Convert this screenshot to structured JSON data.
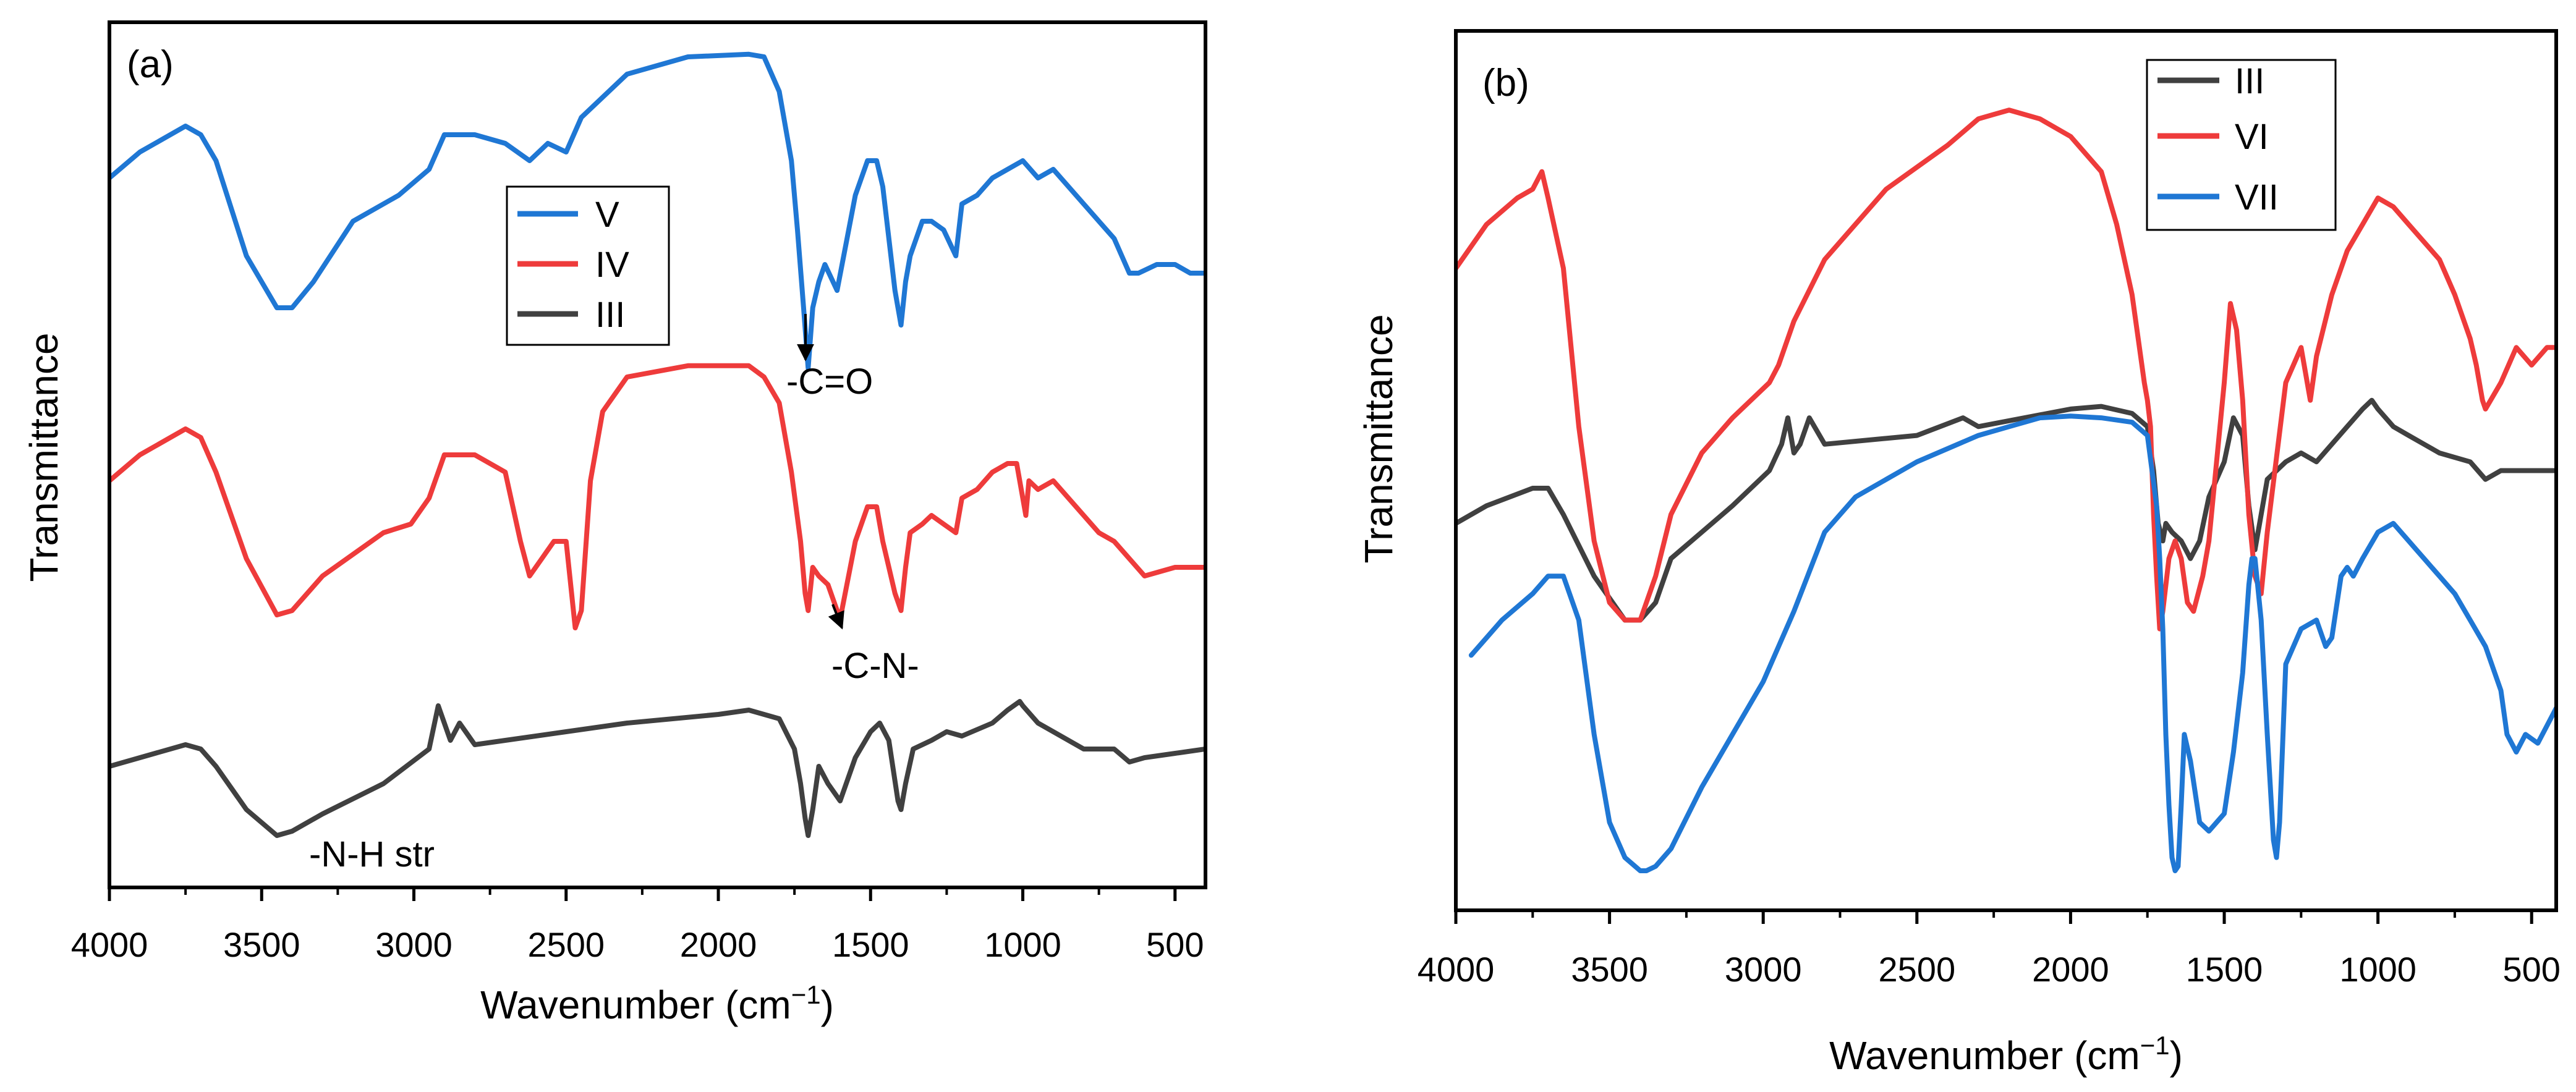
{
  "chart_data": [
    {
      "type": "line",
      "panel_label": "(a)",
      "xlabel": "Wavenumber (cm",
      "xlabel_sup": "−1",
      "xlabel_tail": ")",
      "ylabel": "Transmittance",
      "xlim": [
        4000,
        400
      ],
      "ylim": [
        0,
        100
      ],
      "xticks": [
        4000,
        3500,
        3000,
        2500,
        2000,
        1500,
        1000,
        500
      ],
      "xtick_labels": [
        "4000",
        "3500",
        "3000",
        "2500",
        "2000",
        "1500",
        "1000",
        "500"
      ],
      "legend": [
        "V",
        "IV",
        "III"
      ],
      "legend_position": "center",
      "annotations": [
        {
          "text": "-C=O",
          "x": 1710,
          "y": 57,
          "arrow_from": [
            1700,
            80
          ],
          "arrow_to": [
            1700,
            59
          ]
        },
        {
          "text": "-C-N-",
          "x": 1595,
          "y": 25,
          "arrow_from": [
            1605,
            32
          ],
          "arrow_to": [
            1595,
            28
          ]
        },
        {
          "text": "-N-H str",
          "x": 3210,
          "y": 3.5
        }
      ],
      "series": [
        {
          "name": "V",
          "color": "#1f77d4",
          "x": [
            4000,
            3900,
            3750,
            3700,
            3650,
            3550,
            3450,
            3400,
            3330,
            3200,
            3050,
            2950,
            2900,
            2800,
            2700,
            2620,
            2560,
            2500,
            2450,
            2300,
            2100,
            1900,
            1850,
            1800,
            1760,
            1740,
            1720,
            1705,
            1690,
            1670,
            1650,
            1610,
            1550,
            1510,
            1480,
            1460,
            1420,
            1400,
            1385,
            1370,
            1330,
            1300,
            1260,
            1220,
            1200,
            1150,
            1100,
            1050,
            1000,
            950,
            900,
            850,
            800,
            750,
            700,
            650,
            620,
            560,
            500,
            450,
            400
          ],
          "y": [
            82,
            85,
            88,
            87,
            84,
            73,
            67,
            67,
            70,
            77,
            80,
            83,
            87,
            87,
            86,
            84,
            86,
            85,
            89,
            94,
            96,
            96.3,
            96,
            92,
            84,
            76,
            67,
            60,
            67,
            70,
            72,
            69,
            80,
            84,
            84,
            81,
            69,
            65,
            70,
            73,
            77,
            77,
            76,
            73,
            79,
            80,
            82,
            83,
            84,
            82,
            83,
            81,
            79,
            77,
            75,
            71,
            71,
            72,
            72,
            71,
            71
          ]
        },
        {
          "name": "IV",
          "color": "#ee3b3b",
          "x": [
            4000,
            3900,
            3750,
            3700,
            3650,
            3550,
            3450,
            3400,
            3300,
            3100,
            3010,
            2950,
            2900,
            2800,
            2700,
            2650,
            2620,
            2580,
            2540,
            2500,
            2470,
            2450,
            2420,
            2380,
            2300,
            2100,
            1900,
            1850,
            1800,
            1760,
            1730,
            1715,
            1705,
            1690,
            1670,
            1640,
            1600,
            1550,
            1510,
            1480,
            1460,
            1420,
            1400,
            1385,
            1370,
            1330,
            1300,
            1260,
            1220,
            1200,
            1150,
            1100,
            1050,
            1020,
            990,
            980,
            950,
            900,
            850,
            800,
            750,
            700,
            650,
            600,
            500,
            400
          ],
          "y": [
            47,
            50,
            53,
            52,
            48,
            38,
            31.5,
            32,
            36,
            41,
            42,
            45,
            50,
            50,
            48,
            40,
            36,
            38,
            40,
            40,
            30,
            32,
            47,
            55,
            59,
            60.3,
            60.3,
            59,
            56,
            48,
            40,
            34,
            32,
            37,
            36,
            35,
            31,
            40,
            44,
            44,
            40,
            34,
            32,
            37,
            41,
            42,
            43,
            42,
            41,
            45,
            46,
            48,
            49,
            49,
            43,
            47,
            46,
            47,
            45,
            43,
            41,
            40,
            38,
            36,
            37,
            37
          ]
        },
        {
          "name": "III",
          "color": "#404040",
          "x": [
            4000,
            3900,
            3750,
            3700,
            3650,
            3550,
            3450,
            3400,
            3300,
            3100,
            2950,
            2920,
            2880,
            2850,
            2800,
            2500,
            2300,
            2000,
            1900,
            1800,
            1750,
            1730,
            1715,
            1705,
            1690,
            1670,
            1640,
            1600,
            1550,
            1500,
            1470,
            1440,
            1410,
            1400,
            1385,
            1360,
            1300,
            1250,
            1200,
            1100,
            1050,
            1010,
            1000,
            950,
            900,
            850,
            800,
            700,
            650,
            600,
            500,
            400
          ],
          "y": [
            14,
            15,
            16.5,
            16,
            14,
            9,
            6,
            6.5,
            8.5,
            12,
            16,
            21,
            17,
            19,
            16.5,
            18,
            19,
            20,
            20.5,
            19.5,
            16,
            12,
            8,
            6,
            9,
            14,
            12,
            10,
            15,
            18,
            19,
            17,
            10,
            9,
            12,
            16,
            17,
            18,
            17.5,
            19,
            20.5,
            21.5,
            21,
            19,
            18,
            17,
            16,
            16,
            14.5,
            15,
            15.5,
            16
          ]
        }
      ]
    },
    {
      "type": "line",
      "panel_label": "(b)",
      "xlabel": "Wavenumber (cm",
      "xlabel_sup": "−1",
      "xlabel_tail": ")",
      "ylabel": "Transmittance",
      "xlim": [
        4000,
        420
      ],
      "ylim": [
        0,
        100
      ],
      "xticks": [
        4000,
        3500,
        3000,
        2500,
        2000,
        1500,
        1000,
        500
      ],
      "xtick_labels": [
        "4000",
        "3500",
        "3000",
        "2500",
        "2000",
        "1500",
        "1000",
        "500"
      ],
      "legend": [
        "III",
        "VI",
        "VII"
      ],
      "legend_position": "top-center",
      "series": [
        {
          "name": "III",
          "color": "#404040",
          "x": [
            4000,
            3900,
            3750,
            3700,
            3650,
            3550,
            3450,
            3400,
            3350,
            3300,
            3200,
            3100,
            2980,
            2940,
            2920,
            2900,
            2880,
            2850,
            2800,
            2500,
            2350,
            2300,
            2000,
            1900,
            1800,
            1750,
            1730,
            1715,
            1700,
            1690,
            1670,
            1640,
            1610,
            1580,
            1550,
            1500,
            1470,
            1440,
            1420,
            1400,
            1385,
            1360,
            1300,
            1250,
            1200,
            1100,
            1050,
            1020,
            1000,
            950,
            900,
            850,
            800,
            700,
            650,
            600,
            500,
            420
          ],
          "y": [
            44,
            46,
            48,
            48,
            45,
            38,
            33,
            33,
            35,
            40,
            43,
            46,
            50,
            53,
            56,
            52,
            53,
            56,
            53,
            54,
            56,
            55,
            57,
            57.3,
            56.5,
            55,
            50,
            44,
            42,
            44,
            43,
            42,
            40,
            42,
            47,
            51,
            56,
            54,
            46,
            41,
            44,
            49,
            51,
            52,
            51,
            55,
            57,
            58,
            57,
            55,
            54,
            53,
            52,
            51,
            49,
            50,
            50,
            50
          ]
        },
        {
          "name": "VI",
          "color": "#ee3b3b",
          "x": [
            4000,
            3900,
            3800,
            3750,
            3720,
            3700,
            3650,
            3600,
            3550,
            3500,
            3450,
            3400,
            3350,
            3300,
            3200,
            3100,
            2980,
            2950,
            2900,
            2800,
            2600,
            2400,
            2300,
            2250,
            2200,
            2100,
            2000,
            1900,
            1850,
            1800,
            1780,
            1760,
            1750,
            1740,
            1730,
            1720,
            1710,
            1700,
            1680,
            1660,
            1640,
            1620,
            1600,
            1570,
            1550,
            1500,
            1480,
            1460,
            1440,
            1420,
            1400,
            1380,
            1360,
            1300,
            1250,
            1220,
            1200,
            1150,
            1100,
            1050,
            1000,
            950,
            900,
            850,
            800,
            750,
            700,
            680,
            660,
            650,
            600,
            550,
            500,
            450,
            420
          ],
          "y": [
            73,
            78,
            81,
            82,
            84,
            81,
            73,
            55,
            42,
            35,
            33,
            33,
            38,
            45,
            52,
            56,
            60,
            62,
            67,
            74,
            82,
            87,
            90,
            90.5,
            91,
            90,
            88,
            84,
            78,
            70,
            65,
            60,
            58,
            55,
            45,
            38,
            32,
            34,
            40,
            42,
            40,
            35,
            34,
            38,
            42,
            60,
            69,
            66,
            58,
            45,
            38,
            36,
            43,
            60,
            64,
            58,
            63,
            70,
            75,
            78,
            81,
            80,
            78,
            76,
            74,
            70,
            65,
            62,
            58,
            57,
            60,
            64,
            62,
            64,
            64
          ]
        },
        {
          "name": "VII",
          "color": "#1f77d4",
          "x": [
            3950,
            3850,
            3750,
            3700,
            3650,
            3600,
            3550,
            3500,
            3450,
            3400,
            3380,
            3350,
            3300,
            3200,
            3100,
            3000,
            2900,
            2800,
            2700,
            2500,
            2300,
            2200,
            2100,
            2000,
            1900,
            1800,
            1750,
            1720,
            1710,
            1700,
            1690,
            1680,
            1670,
            1660,
            1650,
            1640,
            1630,
            1610,
            1580,
            1550,
            1500,
            1470,
            1440,
            1420,
            1410,
            1400,
            1380,
            1360,
            1340,
            1330,
            1320,
            1300,
            1250,
            1200,
            1170,
            1150,
            1120,
            1100,
            1080,
            1050,
            1000,
            950,
            900,
            850,
            800,
            750,
            700,
            650,
            600,
            580,
            550,
            520,
            480,
            450,
            420
          ],
          "y": [
            29,
            33,
            36,
            38,
            38,
            33,
            20,
            10,
            6,
            4.5,
            4.5,
            5,
            7,
            14,
            20,
            26,
            34,
            43,
            47,
            51,
            54,
            55,
            56,
            56.2,
            56,
            55.5,
            54,
            46,
            40,
            32,
            20,
            12,
            6,
            4.5,
            5,
            12,
            20,
            17,
            10,
            9,
            11,
            18,
            27,
            37,
            40,
            40,
            33,
            20,
            8,
            6,
            10,
            28,
            32,
            33,
            30,
            31,
            38,
            39,
            38,
            40,
            43,
            44,
            42,
            40,
            38,
            36,
            33,
            30,
            25,
            20,
            18,
            20,
            19,
            21,
            23
          ]
        }
      ]
    }
  ]
}
